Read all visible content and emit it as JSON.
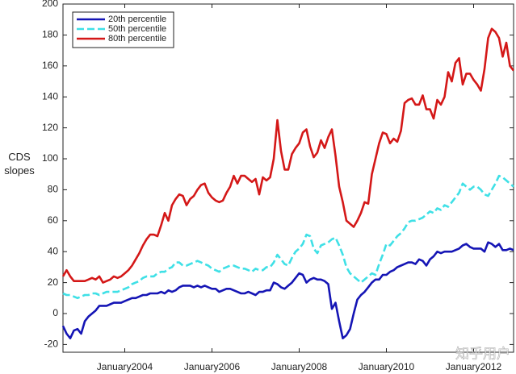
{
  "chart_data": {
    "type": "line",
    "ylabel": "CDS slopes",
    "watermark": "知乎用户",
    "legend": "upper left",
    "grid": false,
    "x": [
      "2002-08",
      "2002-09",
      "2002-10",
      "2002-11",
      "2002-12",
      "2003-01",
      "2003-02",
      "2003-03",
      "2003-04",
      "2003-05",
      "2003-06",
      "2003-07",
      "2003-08",
      "2003-09",
      "2003-10",
      "2003-11",
      "2003-12",
      "2004-01",
      "2004-02",
      "2004-03",
      "2004-04",
      "2004-05",
      "2004-06",
      "2004-07",
      "2004-08",
      "2004-09",
      "2004-10",
      "2004-11",
      "2004-12",
      "2005-01",
      "2005-02",
      "2005-03",
      "2005-04",
      "2005-05",
      "2005-06",
      "2005-07",
      "2005-08",
      "2005-09",
      "2005-10",
      "2005-11",
      "2005-12",
      "2006-01",
      "2006-02",
      "2006-03",
      "2006-04",
      "2006-05",
      "2006-06",
      "2006-07",
      "2006-08",
      "2006-09",
      "2006-10",
      "2006-11",
      "2006-12",
      "2007-01",
      "2007-02",
      "2007-03",
      "2007-04",
      "2007-05",
      "2007-06",
      "2007-07",
      "2007-08",
      "2007-09",
      "2007-10",
      "2007-11",
      "2007-12",
      "2008-01",
      "2008-02",
      "2008-03",
      "2008-04",
      "2008-05",
      "2008-06",
      "2008-07",
      "2008-08",
      "2008-09",
      "2008-10",
      "2008-11",
      "2008-12",
      "2009-01",
      "2009-02",
      "2009-03",
      "2009-04",
      "2009-05",
      "2009-06",
      "2009-07",
      "2009-08",
      "2009-09",
      "2009-10",
      "2009-11",
      "2009-12",
      "2010-01",
      "2010-02",
      "2010-03",
      "2010-04",
      "2010-05",
      "2010-06",
      "2010-07",
      "2010-08",
      "2010-09",
      "2010-10",
      "2010-11",
      "2010-12",
      "2011-01",
      "2011-02",
      "2011-03",
      "2011-04",
      "2011-05",
      "2011-06",
      "2011-07",
      "2011-08",
      "2011-09",
      "2011-10",
      "2011-11",
      "2011-12",
      "2012-01",
      "2012-02",
      "2012-03",
      "2012-04",
      "2012-05",
      "2012-06",
      "2012-07",
      "2012-08",
      "2012-09",
      "2012-10",
      "2012-11",
      "2012-12"
    ],
    "xlim": [
      "2002-08",
      "2012-12"
    ],
    "xticks": [
      {
        "value": "2004-01",
        "label": "January2004"
      },
      {
        "value": "2006-01",
        "label": "January2006"
      },
      {
        "value": "2008-01",
        "label": "January2008"
      },
      {
        "value": "2010-01",
        "label": "January2010"
      },
      {
        "value": "2012-01",
        "label": "January2012"
      }
    ],
    "ylim": [
      -25,
      200
    ],
    "yticks": [
      -20,
      0,
      20,
      40,
      60,
      80,
      100,
      120,
      140,
      160,
      180,
      200
    ],
    "series": [
      {
        "name": "20th percentile",
        "color": "#1515b5",
        "linestyle": "solid",
        "values": [
          -8,
          -13,
          -16,
          -11,
          -10,
          -13,
          -5,
          -2,
          0,
          2,
          5,
          5,
          5,
          6,
          7,
          7,
          7,
          8,
          9,
          10,
          10,
          11,
          12,
          12,
          13,
          13,
          13,
          14,
          13,
          15,
          14,
          15,
          17,
          18,
          18,
          18,
          17,
          18,
          17,
          18,
          17,
          16,
          16,
          14,
          15,
          16,
          16,
          15,
          14,
          13,
          13,
          14,
          13,
          12,
          14,
          14,
          15,
          15,
          20,
          19,
          17,
          16,
          18,
          20,
          23,
          26,
          25,
          20,
          22,
          23,
          22,
          22,
          21,
          19,
          3,
          7,
          -5,
          -16,
          -14,
          -10,
          0,
          9,
          12,
          14,
          17,
          20,
          22,
          22,
          25,
          25,
          27,
          28,
          30,
          31,
          32,
          33,
          33,
          32,
          35,
          34,
          31,
          35,
          37,
          40,
          39,
          40,
          40,
          40,
          41,
          42,
          44,
          45,
          43,
          42,
          42,
          42,
          40,
          46,
          45,
          43,
          45,
          41,
          41,
          42,
          41
        ]
      },
      {
        "name": "50th percentile",
        "color": "#3fe0e6",
        "linestyle": "dashed",
        "values": [
          13,
          12,
          12,
          11,
          10,
          11,
          12,
          12,
          13,
          13,
          12,
          13,
          14,
          14,
          14,
          14,
          15,
          16,
          17,
          19,
          20,
          21,
          23,
          24,
          24,
          24,
          26,
          27,
          27,
          29,
          30,
          33,
          33,
          31,
          31,
          32,
          33,
          34,
          33,
          32,
          31,
          29,
          28,
          27,
          29,
          30,
          31,
          31,
          30,
          29,
          29,
          28,
          27,
          29,
          28,
          28,
          30,
          30,
          33,
          38,
          35,
          32,
          31,
          36,
          40,
          42,
          45,
          51,
          50,
          42,
          39,
          44,
          45,
          46,
          48,
          49,
          44,
          38,
          30,
          26,
          24,
          22,
          20,
          22,
          24,
          26,
          25,
          32,
          38,
          45,
          44,
          47,
          50,
          52,
          55,
          59,
          60,
          60,
          61,
          62,
          64,
          66,
          65,
          68,
          67,
          70,
          69,
          72,
          75,
          78,
          84,
          82,
          80,
          82,
          82,
          80,
          77,
          76,
          80,
          84,
          89,
          88,
          86,
          84,
          82
        ]
      },
      {
        "name": "80th percentile",
        "color": "#d41818",
        "linestyle": "solid",
        "values": [
          24,
          28,
          24,
          21,
          21,
          21,
          21,
          22,
          23,
          22,
          24,
          20,
          21,
          22,
          24,
          23,
          24,
          26,
          28,
          31,
          35,
          39,
          44,
          48,
          51,
          51,
          50,
          57,
          65,
          60,
          70,
          74,
          77,
          76,
          70,
          74,
          76,
          80,
          83,
          84,
          78,
          75,
          73,
          72,
          73,
          78,
          82,
          89,
          84,
          89,
          89,
          87,
          85,
          87,
          77,
          88,
          86,
          88,
          100,
          125,
          105,
          93,
          93,
          103,
          107,
          110,
          117,
          119,
          108,
          101,
          104,
          112,
          107,
          114,
          119,
          102,
          82,
          72,
          60,
          58,
          56,
          60,
          65,
          72,
          71,
          90,
          100,
          110,
          117,
          116,
          110,
          113,
          111,
          118,
          136,
          138,
          139,
          135,
          135,
          141,
          132,
          132,
          126,
          138,
          135,
          140,
          156,
          150,
          162,
          165,
          148,
          155,
          155,
          151,
          148,
          144,
          158,
          178,
          184,
          182,
          178,
          166,
          175,
          160,
          157
        ]
      }
    ]
  }
}
